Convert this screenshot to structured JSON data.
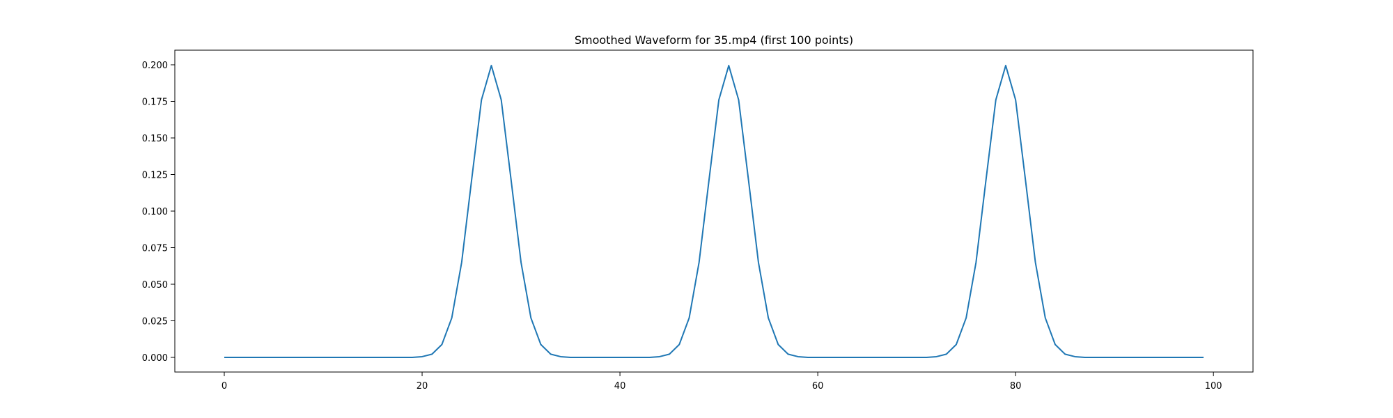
{
  "chart_data": {
    "type": "line",
    "title": "Smoothed Waveform for 35.mp4 (first 100 points)",
    "xlabel": "",
    "ylabel": "",
    "xlim": [
      -5,
      104
    ],
    "ylim": [
      -0.01,
      0.21
    ],
    "x_ticks": [
      0,
      20,
      40,
      60,
      80,
      100
    ],
    "x_tick_labels": [
      "0",
      "20",
      "40",
      "60",
      "80",
      "100"
    ],
    "y_ticks": [
      0.0,
      0.025,
      0.05,
      0.075,
      0.1,
      0.125,
      0.15,
      0.175,
      0.2
    ],
    "y_tick_labels": [
      "0.000",
      "0.025",
      "0.050",
      "0.075",
      "0.100",
      "0.125",
      "0.150",
      "0.175",
      "0.200"
    ],
    "grid": false,
    "series": [
      {
        "color": "#1f77b4",
        "x": [
          0,
          1,
          2,
          3,
          4,
          5,
          6,
          7,
          8,
          9,
          10,
          11,
          12,
          13,
          14,
          15,
          16,
          17,
          18,
          19,
          20,
          21,
          22,
          23,
          24,
          25,
          26,
          27,
          28,
          29,
          30,
          31,
          32,
          33,
          34,
          35,
          36,
          37,
          38,
          39,
          40,
          41,
          42,
          43,
          44,
          45,
          46,
          47,
          48,
          49,
          50,
          51,
          52,
          53,
          54,
          55,
          56,
          57,
          58,
          59,
          60,
          61,
          62,
          63,
          64,
          65,
          66,
          67,
          68,
          69,
          70,
          71,
          72,
          73,
          74,
          75,
          76,
          77,
          78,
          79,
          80,
          81,
          82,
          83,
          84,
          85,
          86,
          87,
          88,
          89,
          90,
          91,
          92,
          93,
          94,
          95,
          96,
          97,
          98,
          99
        ],
        "y": [
          0,
          0,
          0,
          0,
          0,
          0,
          0,
          0,
          0,
          0,
          0,
          0,
          0,
          0,
          0,
          0,
          0,
          0,
          0,
          0,
          0.0005,
          0.0022,
          0.0088,
          0.027,
          0.065,
          0.121,
          0.176,
          0.1995,
          0.176,
          0.121,
          0.065,
          0.027,
          0.0088,
          0.0022,
          0.0005,
          0,
          0,
          0,
          0,
          0,
          0,
          0,
          0,
          0,
          0.0005,
          0.0022,
          0.0088,
          0.027,
          0.065,
          0.121,
          0.176,
          0.1995,
          0.176,
          0.121,
          0.065,
          0.027,
          0.0088,
          0.0022,
          0.0005,
          0,
          0,
          0,
          0,
          0,
          0,
          0,
          0,
          0,
          0,
          0,
          0,
          0,
          0.0005,
          0.0022,
          0.0088,
          0.027,
          0.065,
          0.121,
          0.176,
          0.1995,
          0.176,
          0.121,
          0.065,
          0.027,
          0.0088,
          0.0022,
          0.0005,
          0,
          0,
          0,
          0,
          0,
          0,
          0,
          0,
          0,
          0,
          0,
          0,
          0
        ]
      }
    ]
  }
}
